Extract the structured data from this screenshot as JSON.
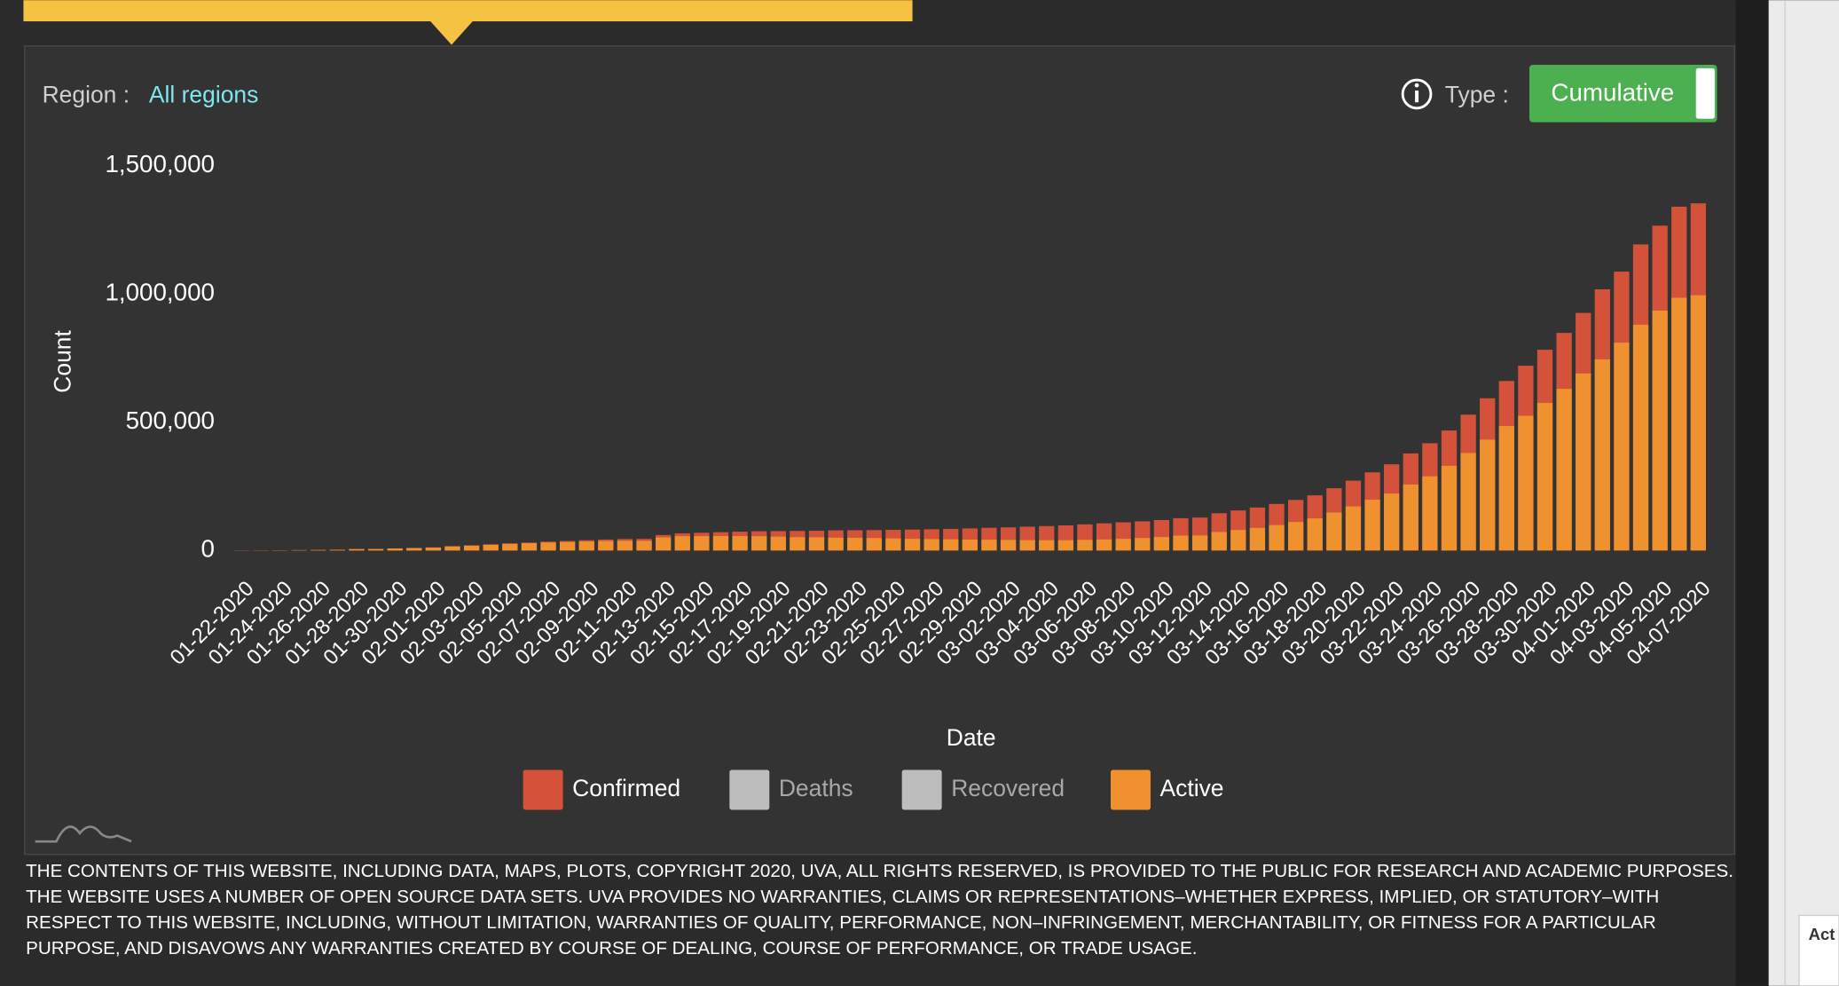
{
  "header": {
    "region_label": "Region :",
    "region_value": "All regions",
    "type_label": "Type :",
    "type_button": "Cumulative"
  },
  "chart_data": {
    "type": "bar",
    "overlay": true,
    "x_label": "Date",
    "y_label": "Count",
    "categories": [
      "01-22-2020",
      null,
      "01-24-2020",
      null,
      "01-26-2020",
      null,
      "01-28-2020",
      null,
      "01-30-2020",
      null,
      "02-01-2020",
      null,
      "02-03-2020",
      null,
      "02-05-2020",
      null,
      "02-07-2020",
      null,
      "02-09-2020",
      null,
      "02-11-2020",
      null,
      "02-13-2020",
      null,
      "02-15-2020",
      null,
      "02-17-2020",
      null,
      "02-19-2020",
      null,
      "02-21-2020",
      null,
      "02-23-2020",
      null,
      "02-25-2020",
      null,
      "02-27-2020",
      null,
      "02-29-2020",
      null,
      "03-02-2020",
      null,
      "03-04-2020",
      null,
      "03-06-2020",
      null,
      "03-08-2020",
      null,
      "03-10-2020",
      null,
      "03-12-2020",
      null,
      "03-14-2020",
      null,
      "03-16-2020",
      null,
      "03-18-2020",
      null,
      "03-20-2020",
      null,
      "03-22-2020",
      null,
      "03-24-2020",
      null,
      "03-26-2020",
      null,
      "03-28-2020",
      null,
      "03-30-2020",
      null,
      "04-01-2020",
      null,
      "04-03-2020",
      null,
      "04-05-2020",
      null,
      "04-07-2020"
    ],
    "series": [
      {
        "name": "Confirmed",
        "color": "#d4523a",
        "values": [
          555,
          654,
          941,
          1434,
          2118,
          2927,
          5578,
          6166,
          8234,
          9927,
          12038,
          16787,
          19887,
          23898,
          27643,
          30802,
          34395,
          37129,
          40160,
          42769,
          44811,
          45229,
          60381,
          66909,
          69052,
          71235,
          73270,
          75152,
          75652,
          76212,
          76843,
          78599,
          78985,
          79570,
          80415,
          81397,
          82756,
          84124,
          86013,
          88371,
          90309,
          92844,
          95124,
          97886,
          101800,
          105836,
          109835,
          113582,
          118582,
          125865,
          128343,
          145193,
          156097,
          167449,
          181531,
          197146,
          214910,
          242708,
          272166,
          304524,
          335955,
          378235,
          418045,
          467653,
          529591,
          593291,
          660706,
          720117,
          782365,
          848000,
          926000,
          1018000,
          1087000,
          1193000,
          1266000,
          1340000,
          1353000
        ]
      },
      {
        "name": "Deaths",
        "color": "#bdbdbd",
        "hidden": true
      },
      {
        "name": "Recovered",
        "color": "#bdbdbd",
        "hidden": true
      },
      {
        "name": "Active",
        "color": "#f0912f",
        "values": [
          500,
          600,
          870,
          1350,
          2000,
          2800,
          5400,
          5900,
          7900,
          9500,
          11500,
          16000,
          18900,
          22500,
          25800,
          28300,
          31200,
          33000,
          35000,
          36700,
          37800,
          37600,
          51000,
          55700,
          56000,
          56400,
          56200,
          55800,
          54000,
          52000,
          51500,
          50000,
          49600,
          48500,
          47000,
          45500,
          44500,
          43500,
          42500,
          42000,
          41000,
          40500,
          40000,
          40000,
          41500,
          43000,
          45500,
          48500,
          52500,
          58000,
          58500,
          72000,
          80000,
          88000,
          99000,
          111000,
          125000,
          148000,
          172000,
          198000,
          222000,
          257000,
          289000,
          330000,
          380000,
          432000,
          485000,
          525000,
          575000,
          630000,
          690000,
          745000,
          810000,
          880000,
          935000,
          985000,
          995000
        ]
      }
    ],
    "ylim": [
      0,
      1500000
    ],
    "yticks": [
      0,
      {
        "value": 500000,
        "label": "500,000"
      },
      {
        "value": 1000000,
        "label": "1,000,000"
      },
      {
        "value": 1500000,
        "label": "1,500,000"
      }
    ]
  },
  "footer": "THE CONTENTS OF THIS WEBSITE, INCLUDING DATA, MAPS, PLOTS, COPYRIGHT 2020, UVA, ALL RIGHTS RESERVED, IS PROVIDED TO THE PUBLIC FOR RESEARCH AND ACADEMIC PURPOSES. THE WEBSITE USES A NUMBER OF OPEN SOURCE DATA SETS. UVA PROVIDES NO WARRANTIES, CLAIMS OR REPRESENTATIONS–WHETHER EXPRESS, IMPLIED, OR STATUTORY–WITH RESPECT TO THIS WEBSITE, INCLUDING, WITHOUT LIMITATION, WARRANTIES OF QUALITY, PERFORMANCE, NON–INFRINGEMENT, MERCHANTABILITY, OR FITNESS FOR A PARTICULAR PURPOSE, AND DISAVOWS ANY WARRANTIES CREATED BY COURSE OF DEALING, COURSE OF PERFORMANCE, OR TRADE USAGE.",
  "side_panel_text": "Act"
}
